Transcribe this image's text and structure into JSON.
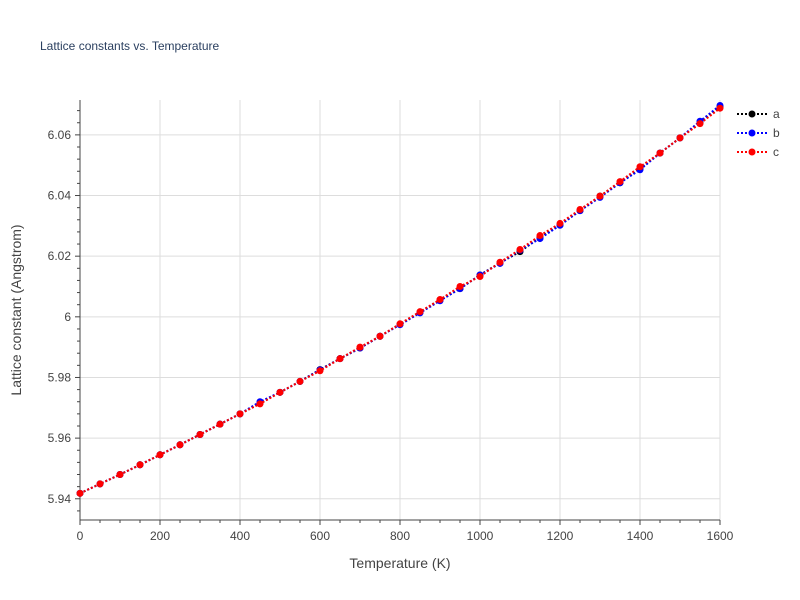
{
  "chart_data": {
    "type": "line",
    "title": "Lattice constants vs. Temperature",
    "xlabel": "Temperature (K)",
    "ylabel": "Lattice constant (Angstrom)",
    "xlim": [
      0,
      1600
    ],
    "ylim": [
      5.933,
      6.0715
    ],
    "xticks": [
      0,
      200,
      400,
      600,
      800,
      1000,
      1200,
      1400,
      1600
    ],
    "xtick_labels": [
      "0",
      "200",
      "400",
      "600",
      "800",
      "1000",
      "1200",
      "1400",
      "1600"
    ],
    "yticks": [
      5.94,
      5.96,
      5.98,
      6.0,
      6.02,
      6.04,
      6.06
    ],
    "ytick_labels": [
      "5.94",
      "5.96",
      "5.98",
      "6",
      "6.02",
      "6.04",
      "6.06"
    ],
    "grid": true,
    "legend_position": "top-right",
    "x": [
      0,
      50,
      100,
      150,
      200,
      250,
      300,
      350,
      400,
      450,
      500,
      550,
      600,
      650,
      700,
      750,
      800,
      850,
      900,
      950,
      1000,
      1050,
      1100,
      1150,
      1200,
      1250,
      1300,
      1350,
      1400,
      1450,
      1500,
      1550,
      1600
    ],
    "series": [
      {
        "name": "a",
        "color": "#000000",
        "values": [
          5.9418,
          5.9449,
          5.948,
          5.9512,
          5.9545,
          5.9578,
          5.9612,
          5.9646,
          5.968,
          5.9715,
          5.9751,
          5.9787,
          5.9826,
          5.9862,
          5.9897,
          5.9936,
          5.9975,
          6.0015,
          6.0055,
          6.0093,
          6.0138,
          6.0178,
          6.0215,
          6.0262,
          6.0303,
          6.035,
          6.0398,
          6.0442,
          6.0488,
          6.054,
          6.059,
          6.064,
          6.0692
        ]
      },
      {
        "name": "b",
        "color": "#0000ff",
        "values": [
          5.9418,
          5.9449,
          5.948,
          5.9512,
          5.9545,
          5.9578,
          5.9612,
          5.9646,
          5.968,
          5.972,
          5.9751,
          5.9787,
          5.9825,
          5.9862,
          5.9897,
          5.9936,
          5.9974,
          6.0013,
          6.0053,
          6.0093,
          6.0138,
          6.0176,
          6.022,
          6.0258,
          6.0302,
          6.035,
          6.0394,
          6.0442,
          6.0485,
          6.054,
          6.059,
          6.0645,
          6.0697
        ]
      },
      {
        "name": "c",
        "color": "#ff0000",
        "values": [
          5.9418,
          5.9449,
          5.948,
          5.9512,
          5.9545,
          5.9578,
          5.9612,
          5.9646,
          5.968,
          5.9713,
          5.9751,
          5.9787,
          5.9822,
          5.9862,
          5.99,
          5.9936,
          5.9977,
          6.0017,
          6.0057,
          6.01,
          6.0133,
          6.018,
          6.0222,
          6.0268,
          6.0308,
          6.0354,
          6.0398,
          6.0446,
          6.0495,
          6.054,
          6.059,
          6.0637,
          6.0688
        ]
      }
    ]
  }
}
